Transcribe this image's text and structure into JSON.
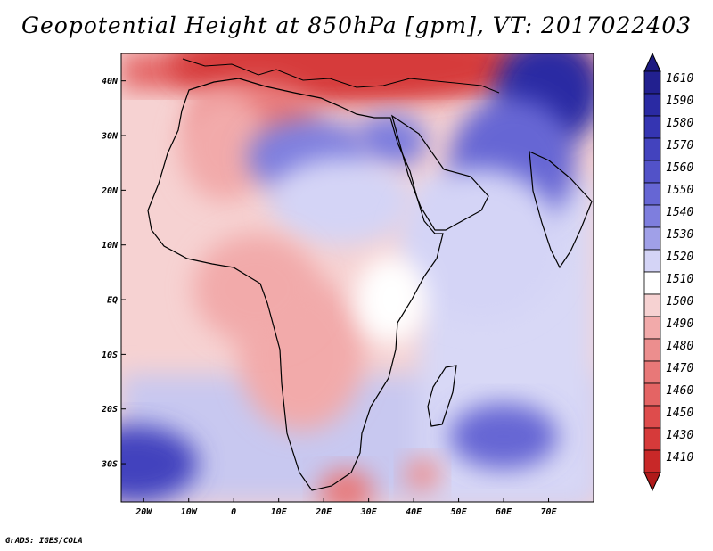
{
  "title": "Geopotential Height at 850hPa [gpm], VT: 2017022403",
  "credit": "GrADS: IGES/COLA",
  "map_extent": {
    "lon": [
      -25,
      80
    ],
    "lat": [
      -37,
      45
    ]
  },
  "lat_ticks": [
    {
      "label": "40N",
      "lat": 40
    },
    {
      "label": "30N",
      "lat": 30
    },
    {
      "label": "20N",
      "lat": 20
    },
    {
      "label": "10N",
      "lat": 10
    },
    {
      "label": "EQ",
      "lat": 0
    },
    {
      "label": "10S",
      "lat": -10
    },
    {
      "label": "20S",
      "lat": -20
    },
    {
      "label": "30S",
      "lat": -30
    }
  ],
  "lon_ticks": [
    {
      "label": "20W",
      "lon": -20
    },
    {
      "label": "10W",
      "lon": -10
    },
    {
      "label": "0",
      "lon": 0
    },
    {
      "label": "10E",
      "lon": 10
    },
    {
      "label": "20E",
      "lon": 20
    },
    {
      "label": "30E",
      "lon": 30
    },
    {
      "label": "40E",
      "lon": 40
    },
    {
      "label": "50E",
      "lon": 50
    },
    {
      "label": "60E",
      "lon": 60
    },
    {
      "label": "70E",
      "lon": 70
    }
  ],
  "colorbar": [
    {
      "label": "1610",
      "color": "#22208f"
    },
    {
      "label": "1590",
      "color": "#2a2aa3"
    },
    {
      "label": "1580",
      "color": "#3535b2"
    },
    {
      "label": "1570",
      "color": "#4343be"
    },
    {
      "label": "1560",
      "color": "#5252c8"
    },
    {
      "label": "1550",
      "color": "#6666d4"
    },
    {
      "label": "1540",
      "color": "#7e7ede"
    },
    {
      "label": "1530",
      "color": "#a0a0e8"
    },
    {
      "label": "1520",
      "color": "#d4d4f6"
    },
    {
      "label": "1510",
      "color": "#ffffff"
    },
    {
      "label": "1500",
      "color": "#f6d2d2"
    },
    {
      "label": "1490",
      "color": "#f2aaaa"
    },
    {
      "label": "1480",
      "color": "#ec8e8e"
    },
    {
      "label": "1470",
      "color": "#e87878"
    },
    {
      "label": "1460",
      "color": "#e46464"
    },
    {
      "label": "1450",
      "color": "#de4c4c"
    },
    {
      "label": "1430",
      "color": "#d63a3a"
    },
    {
      "label": "1410",
      "color": "#c82828"
    }
  ],
  "colorbar_ends": {
    "top": "#1c1a80",
    "bottom": "#b01a1a"
  },
  "field_blobs": [
    {
      "lon": 25,
      "lat": 43,
      "rlon": 40,
      "rlat": 7,
      "level": 1445
    },
    {
      "lon": 5,
      "lat": 33,
      "rlon": 14,
      "rlat": 7,
      "level": 1470
    },
    {
      "lon": -2,
      "lat": 28,
      "rlon": 10,
      "rlat": 10,
      "level": 1490
    },
    {
      "lon": 17,
      "lat": 26,
      "rlon": 14,
      "rlat": 7,
      "level": 1540
    },
    {
      "lon": 35,
      "lat": 29,
      "rlon": 8,
      "rlat": 5,
      "level": 1545
    },
    {
      "lon": 24,
      "lat": 18,
      "rlon": 16,
      "rlat": 8,
      "level": 1525
    },
    {
      "lon": 70,
      "lat": 38,
      "rlon": 12,
      "rlat": 10,
      "level": 1595
    },
    {
      "lon": 62,
      "lat": 25,
      "rlon": 14,
      "rlat": 12,
      "level": 1550
    },
    {
      "lon": 55,
      "lat": 10,
      "rlon": 18,
      "rlat": 14,
      "level": 1522
    },
    {
      "lon": 60,
      "lat": -25,
      "rlon": 12,
      "rlat": 6,
      "level": 1555
    },
    {
      "lon": -22,
      "lat": -30,
      "rlon": 14,
      "rlat": 7,
      "level": 1570
    },
    {
      "lon": 15,
      "lat": -10,
      "rlon": 14,
      "rlat": 14,
      "level": 1492
    },
    {
      "lon": 5,
      "lat": 2,
      "rlon": 14,
      "rlat": 10,
      "level": 1495
    },
    {
      "lon": 35,
      "lat": 0,
      "rlon": 8,
      "rlat": 8,
      "level": 1512
    },
    {
      "lon": 25,
      "lat": -35,
      "rlon": 6,
      "rlat": 4,
      "level": 1478
    },
    {
      "lon": 42,
      "lat": -32,
      "rlon": 4,
      "rlat": 3,
      "level": 1485
    }
  ]
}
